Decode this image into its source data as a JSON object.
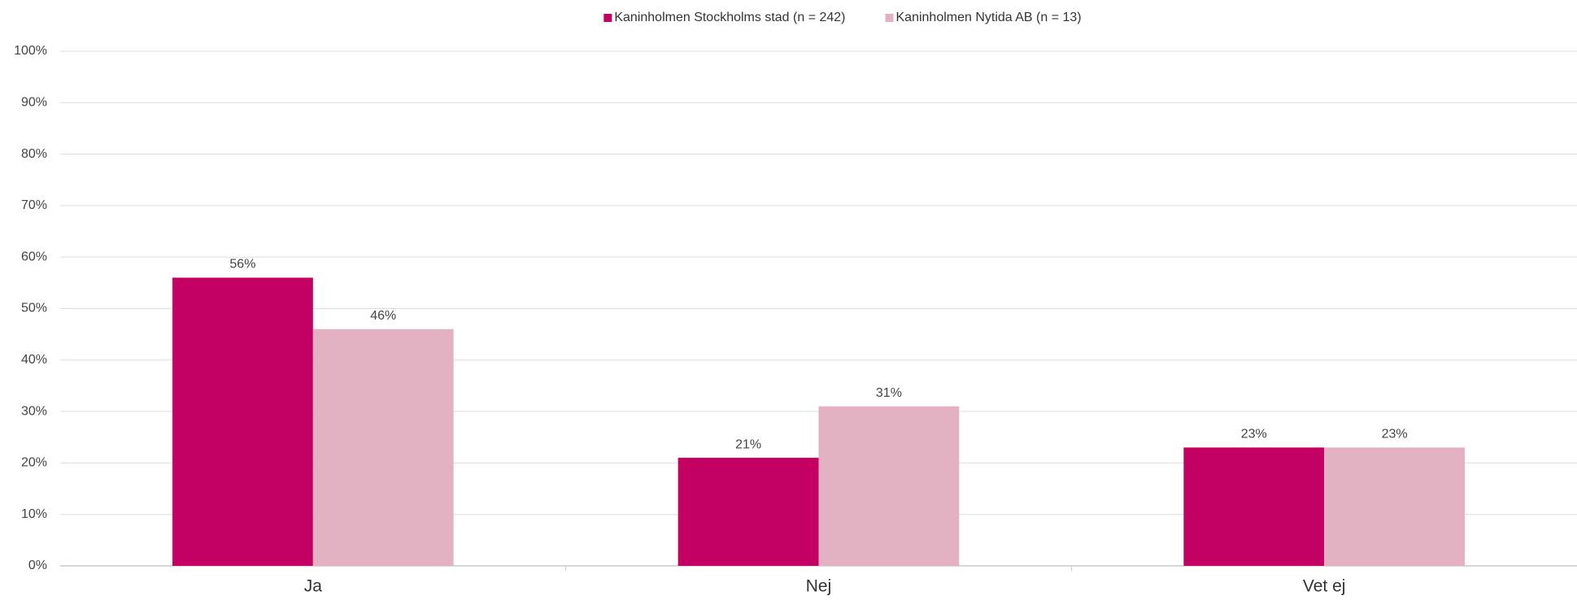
{
  "chart_data": {
    "type": "bar",
    "categories": [
      "Ja",
      "Nej",
      "Vet ej"
    ],
    "series": [
      {
        "name": "Kaninholmen Stockholms stad (n = 242)",
        "color": "#c40062",
        "values": [
          56,
          21,
          23
        ],
        "value_labels": [
          "56%",
          "21%",
          "23%"
        ]
      },
      {
        "name": "Kaninholmen Nytida AB (n = 13)",
        "color": "#e3b1c1",
        "values": [
          46,
          31,
          23
        ],
        "value_labels": [
          "46%",
          "31%",
          "23%"
        ]
      }
    ],
    "ylim": [
      0,
      100
    ],
    "yticks": [
      {
        "value": 0,
        "label": "0%"
      },
      {
        "value": 10,
        "label": "10%"
      },
      {
        "value": 20,
        "label": "20%"
      },
      {
        "value": 30,
        "label": "30%"
      },
      {
        "value": 40,
        "label": "40%"
      },
      {
        "value": 50,
        "label": "50%"
      },
      {
        "value": 60,
        "label": "60%"
      },
      {
        "value": 70,
        "label": "70%"
      },
      {
        "value": 80,
        "label": "80%"
      },
      {
        "value": 90,
        "label": "90%"
      },
      {
        "value": 100,
        "label": "100%"
      }
    ],
    "grid": true,
    "legend": "top"
  }
}
